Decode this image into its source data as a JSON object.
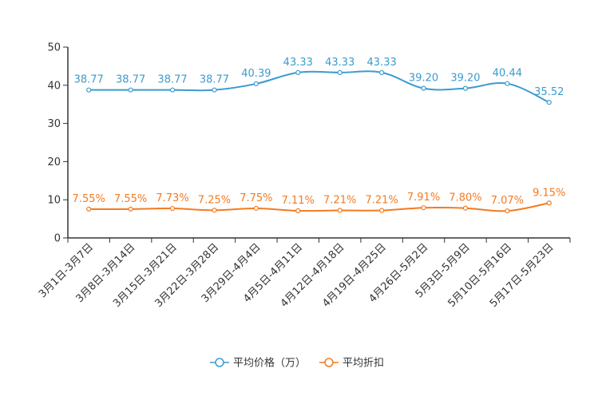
{
  "chart_data": {
    "type": "line",
    "categories": [
      "3月1日-3月7日",
      "3月8日-3月14日",
      "3月15日-3月21日",
      "3月22日-3月28日",
      "3月29日-4月4日",
      "4月5日-4月11日",
      "4月12日-4月18日",
      "4月19日-4月25日",
      "4月26日-5月2日",
      "5月3日-5月9日",
      "5月10日-5月16日",
      "5月17日-5月23日"
    ],
    "ylim": [
      0,
      50
    ],
    "yticks": [
      0,
      10,
      20,
      30,
      40,
      50
    ],
    "series": [
      {
        "name": "平均价格（万）",
        "color": "#3b9bcf",
        "values": [
          38.77,
          38.77,
          38.77,
          38.77,
          40.39,
          43.33,
          43.33,
          43.33,
          39.2,
          39.2,
          40.44,
          35.52
        ],
        "labels": [
          "38.77",
          "38.77",
          "38.77",
          "38.77",
          "40.39",
          "43.33",
          "43.33",
          "43.33",
          "39.20",
          "39.20",
          "40.44",
          "35.52"
        ]
      },
      {
        "name": "平均折扣",
        "color": "#f47a20",
        "values": [
          7.55,
          7.55,
          7.73,
          7.25,
          7.75,
          7.11,
          7.21,
          7.21,
          7.91,
          7.8,
          7.07,
          9.15
        ],
        "labels": [
          "7.55%",
          "7.55%",
          "7.73%",
          "7.25%",
          "7.75%",
          "7.11%",
          "7.21%",
          "7.21%",
          "7.91%",
          "7.80%",
          "7.07%",
          "9.15%"
        ]
      }
    ],
    "legend_position": "bottom-center"
  }
}
